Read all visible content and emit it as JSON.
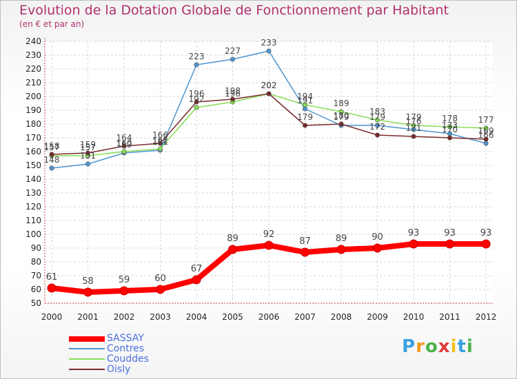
{
  "chart_data": {
    "type": "line",
    "title": "Evolution de la Dotation Globale de Fonctionnement par Habitant",
    "subtitle": "(en € et par an)",
    "xlabel": "",
    "ylabel": "",
    "categories": [
      "2000",
      "2001",
      "2002",
      "2003",
      "2004",
      "2005",
      "2006",
      "2007",
      "2008",
      "2009",
      "2010",
      "2011",
      "2012"
    ],
    "yticks": [
      50,
      60,
      70,
      80,
      90,
      100,
      110,
      120,
      130,
      140,
      150,
      160,
      170,
      180,
      190,
      200,
      210,
      220,
      230,
      240
    ],
    "ylim": [
      50,
      240
    ],
    "grid": true,
    "legend_position": "bottom-left",
    "series": [
      {
        "name": "SASSAY",
        "color": "#ff0000",
        "values": [
          61,
          58,
          59,
          60,
          67,
          89,
          92,
          87,
          89,
          90,
          93,
          93,
          93
        ]
      },
      {
        "name": "Contres",
        "color": "#4d94cf",
        "values": [
          148,
          151,
          159,
          161,
          223,
          227,
          233,
          191,
          179,
          179,
          176,
          173,
          166
        ]
      },
      {
        "name": "Couddes",
        "color": "#88dd55",
        "values": [
          157,
          157,
          160,
          162,
          192,
          196,
          202,
          194,
          189,
          183,
          179,
          178,
          177
        ]
      },
      {
        "name": "Oisly",
        "color": "#7a2a2a",
        "values": [
          158,
          159,
          164,
          166,
          196,
          198,
          202,
          179,
          180,
          172,
          171,
          170,
          169
        ]
      }
    ]
  },
  "brand": {
    "text": "Proxiti"
  }
}
